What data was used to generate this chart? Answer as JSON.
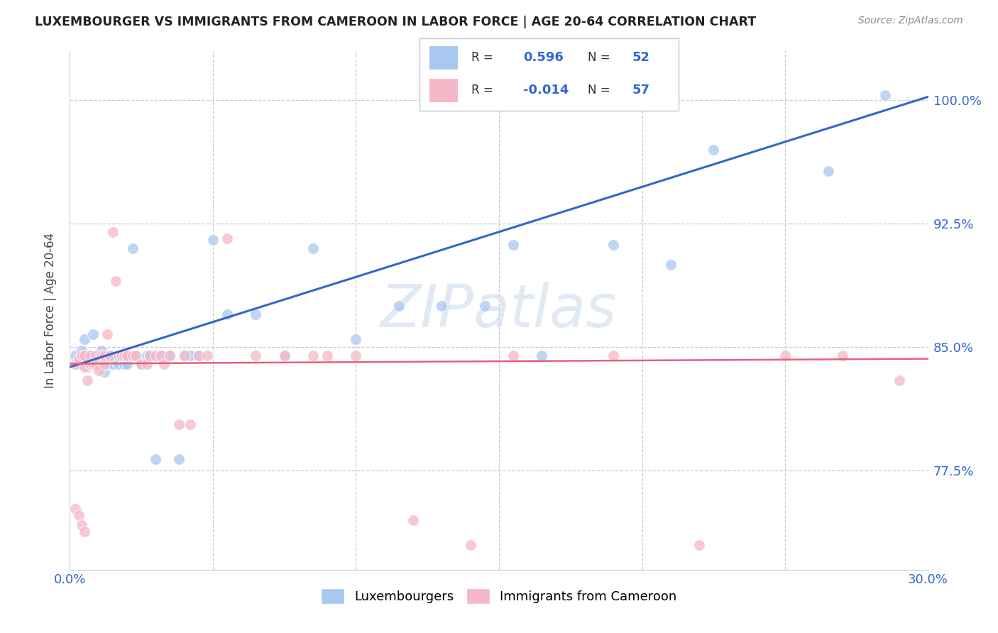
{
  "title": "LUXEMBOURGER VS IMMIGRANTS FROM CAMEROON IN LABOR FORCE | AGE 20-64 CORRELATION CHART",
  "source": "Source: ZipAtlas.com",
  "ylabel": "In Labor Force | Age 20-64",
  "xlim": [
    0.0,
    0.3
  ],
  "ylim": [
    0.715,
    1.03
  ],
  "xticks": [
    0.0,
    0.05,
    0.1,
    0.15,
    0.2,
    0.25,
    0.3
  ],
  "xticklabels": [
    "0.0%",
    "",
    "",
    "",
    "",
    "",
    "30.0%"
  ],
  "yticks": [
    0.775,
    0.85,
    0.925,
    1.0
  ],
  "yticklabels": [
    "77.5%",
    "85.0%",
    "92.5%",
    "100.0%"
  ],
  "blue_color": "#a8c8f0",
  "pink_color": "#f5b8c8",
  "line_blue": "#3366cc",
  "line_pink": "#e8607a",
  "watermark": "ZIPatlas",
  "legend_r1": "R =  0.596",
  "legend_n1": "N = 52",
  "legend_r2": "R = -0.014",
  "legend_n2": "N = 57",
  "blue_x": [
    0.002,
    0.003,
    0.004,
    0.005,
    0.005,
    0.006,
    0.007,
    0.007,
    0.008,
    0.009,
    0.01,
    0.01,
    0.01,
    0.011,
    0.012,
    0.012,
    0.013,
    0.014,
    0.015,
    0.016,
    0.017,
    0.018,
    0.019,
    0.02,
    0.022,
    0.023,
    0.025,
    0.027,
    0.028,
    0.03,
    0.032,
    0.035,
    0.038,
    0.04,
    0.042,
    0.045,
    0.05,
    0.055,
    0.065,
    0.075,
    0.085,
    0.1,
    0.115,
    0.13,
    0.145,
    0.155,
    0.165,
    0.19,
    0.21,
    0.225,
    0.265,
    0.285
  ],
  "blue_y": [
    0.845,
    0.84,
    0.848,
    0.842,
    0.855,
    0.838,
    0.84,
    0.845,
    0.858,
    0.84,
    0.84,
    0.845,
    0.84,
    0.848,
    0.84,
    0.835,
    0.84,
    0.845,
    0.84,
    0.842,
    0.84,
    0.845,
    0.84,
    0.84,
    0.91,
    0.845,
    0.84,
    0.845,
    0.845,
    0.782,
    0.845,
    0.845,
    0.782,
    0.845,
    0.845,
    0.845,
    0.915,
    0.87,
    0.87,
    0.845,
    0.91,
    0.855,
    0.875,
    0.875,
    0.875,
    0.912,
    0.845,
    0.912,
    0.9,
    0.97,
    0.957,
    1.003
  ],
  "pink_x": [
    0.002,
    0.003,
    0.004,
    0.005,
    0.005,
    0.006,
    0.007,
    0.007,
    0.008,
    0.009,
    0.009,
    0.01,
    0.01,
    0.011,
    0.012,
    0.012,
    0.013,
    0.014,
    0.015,
    0.016,
    0.017,
    0.018,
    0.019,
    0.02,
    0.02,
    0.022,
    0.023,
    0.025,
    0.027,
    0.028,
    0.03,
    0.032,
    0.033,
    0.035,
    0.038,
    0.04,
    0.042,
    0.045,
    0.048,
    0.055,
    0.065,
    0.075,
    0.085,
    0.09,
    0.1,
    0.12,
    0.14,
    0.155,
    0.19,
    0.22,
    0.25,
    0.27,
    0.29,
    0.002,
    0.003,
    0.004,
    0.005
  ],
  "pink_y": [
    0.84,
    0.843,
    0.845,
    0.838,
    0.845,
    0.83,
    0.84,
    0.845,
    0.84,
    0.84,
    0.845,
    0.836,
    0.843,
    0.845,
    0.84,
    0.845,
    0.858,
    0.845,
    0.92,
    0.89,
    0.845,
    0.845,
    0.845,
    0.845,
    0.845,
    0.845,
    0.845,
    0.84,
    0.84,
    0.845,
    0.845,
    0.845,
    0.84,
    0.845,
    0.803,
    0.845,
    0.803,
    0.845,
    0.845,
    0.916,
    0.845,
    0.845,
    0.845,
    0.845,
    0.845,
    0.745,
    0.73,
    0.845,
    0.845,
    0.73,
    0.845,
    0.845,
    0.83,
    0.752,
    0.748,
    0.742,
    0.738
  ]
}
